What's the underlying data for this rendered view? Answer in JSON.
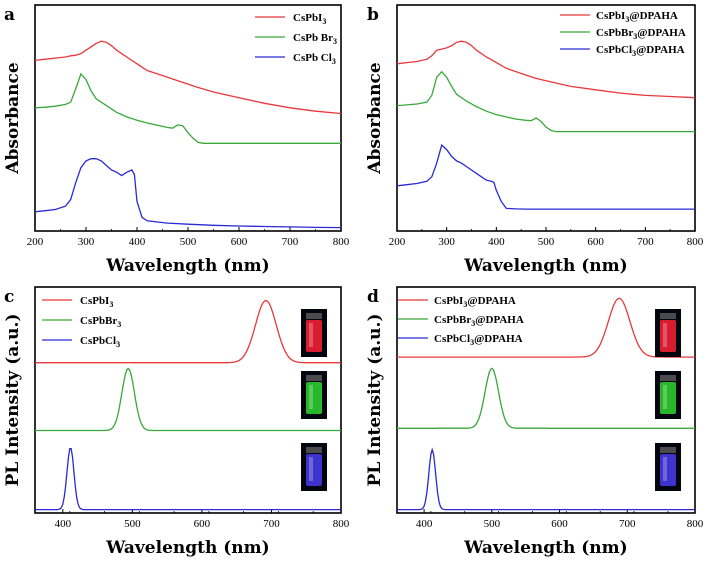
{
  "chart_data": [
    {
      "id": "a",
      "type": "line",
      "panel_label": "a",
      "xlabel": "Wavelength (nm)",
      "ylabel": "Absorbance",
      "xlim": [
        200,
        800
      ],
      "xticks": [
        200,
        300,
        400,
        500,
        600,
        700,
        800
      ],
      "ylim": [
        0,
        1
      ],
      "series": [
        {
          "name": "CsPbI3",
          "legend": {
            "main": "CsPbI",
            "sub": "3",
            "tail": ""
          },
          "color": "#e8383b",
          "x": [
            200,
            220,
            240,
            260,
            270,
            280,
            290,
            300,
            310,
            320,
            330,
            340,
            350,
            360,
            380,
            400,
            420,
            440,
            460,
            480,
            500,
            520,
            550,
            600,
            650,
            700,
            750,
            800
          ],
          "y": [
            0.755,
            0.76,
            0.765,
            0.77,
            0.775,
            0.778,
            0.785,
            0.8,
            0.815,
            0.83,
            0.84,
            0.835,
            0.82,
            0.8,
            0.77,
            0.74,
            0.71,
            0.695,
            0.68,
            0.665,
            0.65,
            0.635,
            0.615,
            0.59,
            0.565,
            0.545,
            0.53,
            0.52
          ]
        },
        {
          "name": "CsPbBr3",
          "legend": {
            "main": "CsPb Br",
            "sub": "3",
            "tail": ""
          },
          "color": "#3aa83a",
          "x": [
            200,
            220,
            240,
            260,
            270,
            280,
            290,
            300,
            310,
            320,
            340,
            360,
            380,
            400,
            420,
            440,
            460,
            470,
            480,
            490,
            500,
            510,
            520,
            530,
            560,
            600,
            650,
            700,
            750,
            800
          ],
          "y": [
            0.545,
            0.548,
            0.552,
            0.56,
            0.57,
            0.63,
            0.695,
            0.67,
            0.62,
            0.585,
            0.555,
            0.525,
            0.505,
            0.49,
            0.478,
            0.468,
            0.458,
            0.455,
            0.47,
            0.465,
            0.435,
            0.41,
            0.392,
            0.388,
            0.388,
            0.388,
            0.388,
            0.388,
            0.388,
            0.388
          ]
        },
        {
          "name": "CsPbCl3",
          "legend": {
            "main": "CsPb Cl",
            "sub": "3",
            "tail": ""
          },
          "color": "#2a2ad6",
          "x": [
            200,
            220,
            240,
            260,
            270,
            280,
            290,
            300,
            310,
            320,
            330,
            340,
            350,
            360,
            370,
            380,
            390,
            395,
            400,
            410,
            420,
            440,
            460,
            500,
            550,
            600,
            650,
            700,
            750,
            800
          ],
          "y": [
            0.085,
            0.09,
            0.095,
            0.11,
            0.14,
            0.215,
            0.28,
            0.31,
            0.32,
            0.32,
            0.31,
            0.29,
            0.27,
            0.26,
            0.245,
            0.26,
            0.27,
            0.25,
            0.13,
            0.06,
            0.045,
            0.04,
            0.035,
            0.03,
            0.025,
            0.022,
            0.02,
            0.018,
            0.016,
            0.015
          ]
        }
      ]
    },
    {
      "id": "b",
      "type": "line",
      "panel_label": "b",
      "xlabel": "Wavelength (nm)",
      "ylabel": "Absorbance",
      "xlim": [
        200,
        800
      ],
      "xticks": [
        200,
        300,
        400,
        500,
        600,
        700,
        800
      ],
      "ylim": [
        0,
        1
      ],
      "series": [
        {
          "name": "CsPbI3@DPAHA",
          "legend": {
            "main": "CsPbI",
            "sub": "3",
            "tail": "@DPAHA"
          },
          "color": "#e8383b",
          "x": [
            200,
            220,
            240,
            260,
            270,
            280,
            290,
            300,
            310,
            320,
            330,
            340,
            350,
            360,
            380,
            400,
            420,
            440,
            460,
            480,
            500,
            520,
            550,
            600,
            650,
            700,
            750,
            800
          ],
          "y": [
            0.74,
            0.745,
            0.75,
            0.76,
            0.775,
            0.8,
            0.805,
            0.81,
            0.82,
            0.835,
            0.84,
            0.835,
            0.82,
            0.8,
            0.77,
            0.745,
            0.72,
            0.705,
            0.69,
            0.675,
            0.665,
            0.655,
            0.64,
            0.625,
            0.61,
            0.6,
            0.595,
            0.59
          ]
        },
        {
          "name": "CsPbBr3@DPAHA",
          "legend": {
            "main": "CsPbBr",
            "sub": "3",
            "tail": "@DPAHA"
          },
          "color": "#3aa83a",
          "x": [
            200,
            220,
            240,
            260,
            270,
            280,
            290,
            300,
            310,
            320,
            340,
            360,
            380,
            400,
            420,
            440,
            460,
            470,
            480,
            490,
            500,
            510,
            520,
            560,
            600,
            650,
            700,
            750,
            800
          ],
          "y": [
            0.555,
            0.558,
            0.562,
            0.57,
            0.6,
            0.68,
            0.705,
            0.68,
            0.64,
            0.605,
            0.575,
            0.55,
            0.53,
            0.515,
            0.505,
            0.495,
            0.49,
            0.488,
            0.5,
            0.485,
            0.46,
            0.445,
            0.44,
            0.44,
            0.44,
            0.44,
            0.44,
            0.44,
            0.44
          ]
        },
        {
          "name": "CsPbCl3@DPAHA",
          "legend": {
            "main": "CsPbCl",
            "sub": "3",
            "tail": "@DPAHA"
          },
          "color": "#2a2ad6",
          "x": [
            200,
            220,
            240,
            260,
            270,
            280,
            290,
            300,
            310,
            320,
            330,
            340,
            350,
            360,
            370,
            380,
            390,
            395,
            400,
            410,
            420,
            440,
            460,
            500,
            550,
            600,
            650,
            700,
            750,
            800
          ],
          "y": [
            0.2,
            0.205,
            0.21,
            0.22,
            0.24,
            0.3,
            0.38,
            0.36,
            0.33,
            0.31,
            0.3,
            0.285,
            0.27,
            0.255,
            0.24,
            0.225,
            0.22,
            0.215,
            0.18,
            0.13,
            0.1,
            0.098,
            0.097,
            0.097,
            0.097,
            0.097,
            0.097,
            0.097,
            0.097,
            0.097
          ]
        }
      ]
    },
    {
      "id": "c",
      "type": "line",
      "panel_label": "c",
      "xlabel": "Wavelength (nm)",
      "ylabel": "PL Intensity (a.u.)",
      "xlim": [
        360,
        800
      ],
      "xticks": [
        400,
        500,
        600,
        700,
        800
      ],
      "ylim": [
        0,
        1
      ],
      "series": [
        {
          "name": "CsPbI3",
          "legend": {
            "main": "CsPbI",
            "sub": "3",
            "tail": ""
          },
          "color": "#e8383b",
          "baseline": 0.665,
          "peak": 692,
          "height": 0.275,
          "width": 15
        },
        {
          "name": "CsPbBr3",
          "legend": {
            "main": "CsPbBr",
            "sub": "3",
            "tail": ""
          },
          "color": "#3aa83a",
          "baseline": 0.365,
          "peak": 494,
          "height": 0.275,
          "width": 9
        },
        {
          "name": "CsPbCl3",
          "legend": {
            "main": "CsPbCl",
            "sub": "3",
            "tail": ""
          },
          "color": "#2a2ad6",
          "baseline": 0.015,
          "peak": 411,
          "height": 0.275,
          "width": 5
        }
      ]
    },
    {
      "id": "d",
      "type": "line",
      "panel_label": "d",
      "xlabel": "Wavelength (nm)",
      "ylabel": "PL Intensity (a.u.)",
      "xlim": [
        360,
        800
      ],
      "xticks": [
        400,
        500,
        600,
        700,
        800
      ],
      "ylim": [
        0,
        1
      ],
      "series": [
        {
          "name": "CsPbI3@DPAHA",
          "legend": {
            "main": "CsPbI",
            "sub": "3",
            "tail": "@DPAHA"
          },
          "color": "#e8383b",
          "baseline": 0.69,
          "peak": 688,
          "height": 0.26,
          "width": 16
        },
        {
          "name": "CsPbBr3@DPAHA",
          "legend": {
            "main": "CsPbBr",
            "sub": "3",
            "tail": "@DPAHA"
          },
          "color": "#3aa83a",
          "baseline": 0.375,
          "peak": 500,
          "height": 0.265,
          "width": 10
        },
        {
          "name": "CsPbCl3@DPAHA",
          "legend": {
            "main": "CsPbCl",
            "sub": "3",
            "tail": "@DPAHA"
          },
          "color": "#2a2ad6",
          "baseline": 0.015,
          "peak": 412,
          "height": 0.265,
          "width": 5
        }
      ]
    }
  ],
  "vial_photos": {
    "c": [
      {
        "series": "CsPbI3",
        "color": "#ff2236"
      },
      {
        "series": "CsPbBr3",
        "color": "#2ed82e"
      },
      {
        "series": "CsPbCl3",
        "color": "#4a3cf0"
      }
    ],
    "d": [
      {
        "series": "CsPbI3@DPAHA",
        "color": "#ff2236"
      },
      {
        "series": "CsPbBr3@DPAHA",
        "color": "#2ed82e"
      },
      {
        "series": "CsPbCl3@DPAHA",
        "color": "#4a3cf0"
      }
    ]
  }
}
